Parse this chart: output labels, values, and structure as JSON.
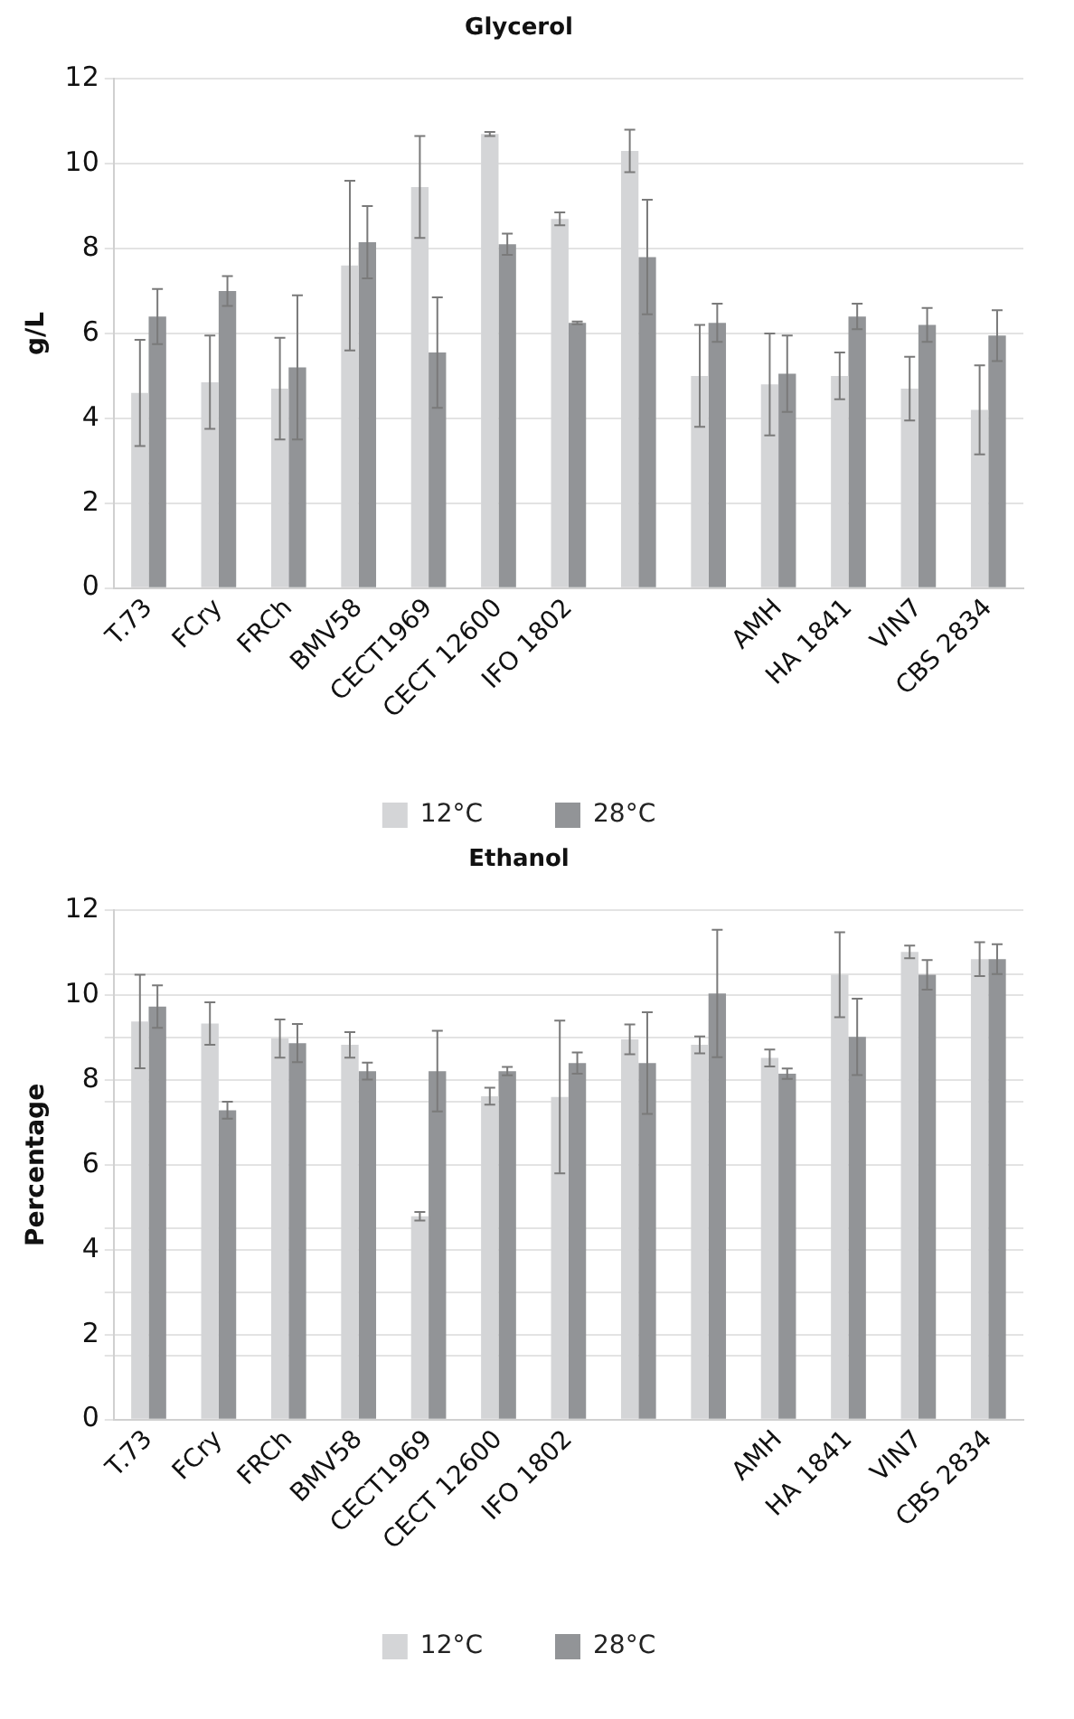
{
  "chart_data": [
    {
      "type": "bar",
      "title": "Glycerol",
      "ylabel": "g/L",
      "categories": [
        "T.73",
        "FCry",
        "FRCh",
        "BMV58",
        "CECT1969",
        "CECT 12600",
        "IFO 1802",
        null,
        null,
        "AMH",
        "HA 1841",
        "VIN7",
        "CBS 2834"
      ],
      "series": [
        {
          "name": "12°C",
          "color": "#d4d5d7",
          "values": [
            4.6,
            4.85,
            4.7,
            7.6,
            9.45,
            10.7,
            8.7,
            10.3,
            5.0,
            4.8,
            5.0,
            4.7,
            4.2
          ],
          "errors": [
            1.25,
            1.1,
            1.2,
            2.0,
            1.2,
            0.05,
            0.15,
            0.5,
            1.2,
            1.2,
            0.55,
            0.75,
            1.05
          ]
        },
        {
          "name": "28°C",
          "color": "#929497",
          "values": [
            6.4,
            7.0,
            5.2,
            8.15,
            5.55,
            8.1,
            6.25,
            7.8,
            6.25,
            5.05,
            6.4,
            6.2,
            5.95
          ],
          "errors": [
            0.65,
            0.35,
            1.7,
            0.85,
            1.3,
            0.25,
            0.03,
            1.35,
            0.45,
            0.9,
            0.3,
            0.4,
            0.6
          ]
        }
      ],
      "ylim": [
        0,
        12
      ],
      "yticks": [
        0,
        2,
        4,
        6,
        8,
        10,
        12
      ],
      "grid": "y",
      "legend": "bottom"
    },
    {
      "type": "bar",
      "title": "Ethanol",
      "ylabel": "Percentage",
      "categories": [
        "T.73",
        "FCry",
        "FRCh",
        "BMV58",
        "CECT1969",
        "CECT 12600",
        "IFO 1802",
        null,
        null,
        "AMH",
        "HA 1841",
        "VIN7",
        "CBS 2834"
      ],
      "series": [
        {
          "name": "12°C",
          "color": "#d4d5d7",
          "values": [
            9.38,
            9.33,
            8.98,
            8.83,
            4.79,
            7.62,
            7.6,
            8.96,
            8.83,
            8.52,
            10.48,
            11.02,
            10.85
          ],
          "errors": [
            1.1,
            0.5,
            0.45,
            0.3,
            0.1,
            0.2,
            1.8,
            0.35,
            0.2,
            0.2,
            1.0,
            0.15,
            0.4
          ]
        },
        {
          "name": "28°C",
          "color": "#929497",
          "values": [
            9.73,
            7.29,
            8.87,
            8.21,
            8.21,
            8.21,
            8.4,
            8.4,
            10.04,
            8.15,
            9.02,
            10.48,
            10.85
          ],
          "errors": [
            0.5,
            0.2,
            0.45,
            0.2,
            0.95,
            0.1,
            0.25,
            1.2,
            1.5,
            0.12,
            0.9,
            0.35,
            0.35
          ]
        }
      ],
      "ylim": [
        0,
        12
      ],
      "yticks": [
        0,
        {
          "value": 1.5,
          "label": null
        },
        2,
        {
          "value": 3,
          "label": null
        },
        4,
        {
          "value": 4.5,
          "label": null
        },
        6,
        {
          "value": 7.5,
          "label": null
        },
        8,
        {
          "value": 9,
          "label": null
        },
        10,
        {
          "value": 10.5,
          "label": null
        },
        12
      ],
      "grid": "y",
      "legend": "bottom"
    }
  ]
}
